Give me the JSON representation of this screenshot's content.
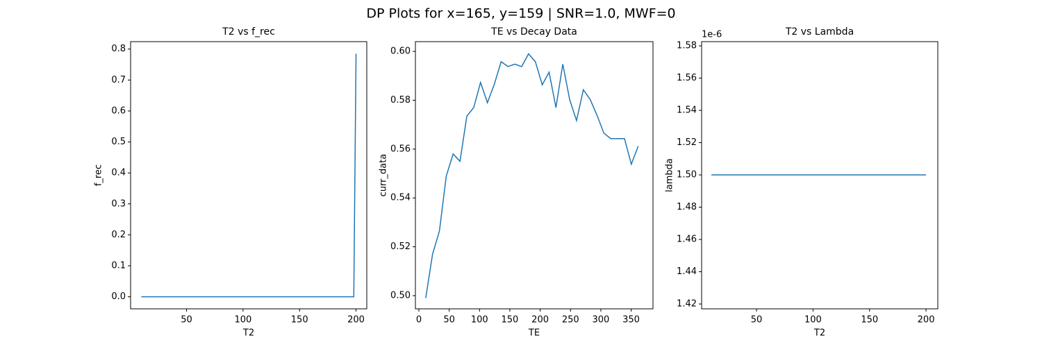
{
  "title": "DP Plots for x=165, y=159 | SNR=1.0, MWF=0",
  "chart_data": [
    {
      "type": "line",
      "title": "T2 vs f_rec",
      "x_label": "T2",
      "y_label": "f_rec",
      "x": [
        10,
        50,
        100,
        150,
        198,
        200
      ],
      "series": [
        {
          "color": "#1f77b4",
          "values": [
            0,
            0,
            0,
            0,
            0,
            0.785
          ]
        }
      ],
      "xlim": [
        0.5,
        209.5
      ],
      "ylim": [
        -0.039,
        0.824
      ],
      "xticks": [
        50,
        100,
        150,
        200
      ],
      "yticks": [
        {
          "value": 0,
          "label": "0.0"
        },
        0.1,
        0.2,
        0.3,
        0.4,
        0.5,
        0.6,
        0.7,
        0.8
      ],
      "grid": false
    },
    {
      "type": "line",
      "title": "TE vs Decay Data",
      "x_label": "TE",
      "y_label": "curr_data",
      "x": [
        11.3,
        22.6,
        33.9,
        45.2,
        56.5,
        67.8,
        79.1,
        90.4,
        101.7,
        113,
        124.3,
        135.6,
        146.9,
        158.2,
        169.5,
        180.8,
        192.1,
        203.4,
        214.7,
        226,
        237.3,
        248.6,
        259.9,
        271.2,
        282.5,
        293.8,
        305.1,
        316.4,
        327.7,
        339,
        350.3,
        361.6
      ],
      "series": [
        {
          "color": "#1f77b4",
          "values": [
            0.499,
            0.517,
            0.5265,
            0.549,
            0.558,
            0.555,
            0.5735,
            0.577,
            0.5873,
            0.579,
            0.5865,
            0.5958,
            0.5938,
            0.5948,
            0.5938,
            0.599,
            0.5958,
            0.5863,
            0.5915,
            0.577,
            0.5948,
            0.5803,
            0.5717,
            0.5843,
            0.5803,
            0.5738,
            0.5665,
            0.5643,
            0.5643,
            0.5643,
            0.5538,
            0.5612
          ]
        }
      ],
      "xlim": [
        -5.7,
        386
      ],
      "ylim": [
        0.4946,
        0.604
      ],
      "xticks": [
        0,
        50,
        100,
        150,
        200,
        250,
        300,
        350
      ],
      "yticks": [
        {
          "value": 0.5,
          "label": "0.50"
        },
        0.52,
        0.54,
        0.56,
        0.58,
        {
          "value": 0.6,
          "label": "0.60"
        }
      ],
      "grid": false
    },
    {
      "type": "line",
      "title": "T2 vs Lambda",
      "x_label": "T2",
      "y_label": "lambda",
      "y_offset_label": "1e-6",
      "x": [
        10,
        200
      ],
      "series": [
        {
          "color": "#1f77b4",
          "values": [
            1.5e-06,
            1.5e-06
          ]
        }
      ],
      "xlim": [
        1.4,
        210.4
      ],
      "ylim": [
        1.417e-06,
        1.5826e-06
      ],
      "xticks": [
        50,
        100,
        150,
        200
      ],
      "yticks": [
        {
          "value": 1.42e-06,
          "label": "1.42"
        },
        {
          "value": 1.44e-06,
          "label": "1.44"
        },
        {
          "value": 1.46e-06,
          "label": "1.46"
        },
        {
          "value": 1.48e-06,
          "label": "1.48"
        },
        {
          "value": 1.5e-06,
          "label": "1.50"
        },
        {
          "value": 1.52e-06,
          "label": "1.52"
        },
        {
          "value": 1.54e-06,
          "label": "1.54"
        },
        {
          "value": 1.56e-06,
          "label": "1.56"
        },
        {
          "value": 1.58e-06,
          "label": "1.58"
        }
      ],
      "grid": false
    }
  ]
}
